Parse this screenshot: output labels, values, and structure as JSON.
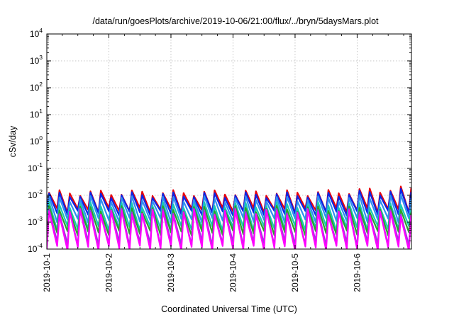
{
  "chart_data": {
    "type": "line",
    "title": "/data/run/goesPlots/archive/2019-10-06/21:00/flux/../bryn/5daysMars.plot",
    "xlabel": "Coordinated Universal Time (UTC)",
    "ylabel": "cSv/day",
    "yscale": "log",
    "ylim": [
      0.0001,
      10000
    ],
    "xlim": [
      "2019-10-01",
      "2019-10-06 21:00"
    ],
    "x_ticks": [
      "2019-10-1",
      "2019-10-2",
      "2019-10-3",
      "2019-10-4",
      "2019-10-5",
      "2019-10-6"
    ],
    "y_ticks": [
      {
        "base": "10",
        "exp": "-4"
      },
      {
        "base": "10",
        "exp": "-3"
      },
      {
        "base": "10",
        "exp": "-2"
      },
      {
        "base": "10",
        "exp": "-1"
      },
      {
        "base": "10",
        "exp": "0"
      },
      {
        "base": "10",
        "exp": "1"
      },
      {
        "base": "10",
        "exp": "2"
      },
      {
        "base": "10",
        "exp": "3"
      },
      {
        "base": "10",
        "exp": "4"
      }
    ],
    "grid": true,
    "legend": "none",
    "cycles_per_day": 6,
    "series": [
      {
        "color": "#e8000b",
        "peak": 0.0125,
        "trough": 0.0028,
        "late_peak": 0.018
      },
      {
        "color": "#0a24e6",
        "peak": 0.0105,
        "trough": 0.0022,
        "late_peak": 0.0145
      },
      {
        "color": "#2f8ef0",
        "peak": 0.0075,
        "trough": 0.0012,
        "late_peak": 0.009
      },
      {
        "color": "#19c8b4",
        "peak": 0.0045,
        "trough": 0.0006,
        "late_peak": 0.004
      },
      {
        "color": "#28a428",
        "peak": 0.0032,
        "trough": 0.0004,
        "late_peak": 0.003
      },
      {
        "color": "#9a3cdc",
        "peak": 0.0026,
        "trough": 0.00016,
        "late_peak": 0.0022
      },
      {
        "color": "#ff00ff",
        "peak": 0.0024,
        "trough": 0.00011,
        "late_peak": 0.002
      }
    ]
  }
}
